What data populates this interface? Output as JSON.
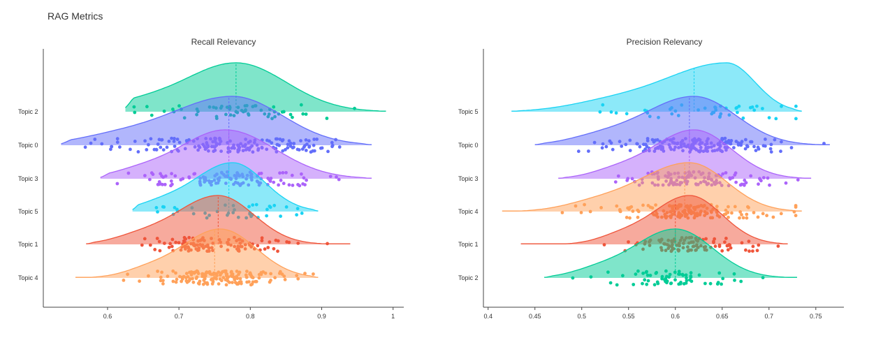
{
  "title": "RAG Metrics",
  "chart_data": [
    {
      "type": "ridgeline",
      "title": "Recall Relevancy",
      "xlabel": "",
      "xlim": [
        0.51,
        1.015
      ],
      "xticks": [
        0.6,
        0.7,
        0.8,
        0.9,
        1
      ],
      "xtick_labels": [
        "0.6",
        "0.7",
        "0.8",
        "0.9",
        "1"
      ],
      "series": [
        {
          "name": "Topic 2",
          "color": "#00cc96",
          "min": 0.625,
          "max": 0.99,
          "mean": 0.78,
          "mode": 0.78,
          "spread_left": 0.075,
          "spread_right": 0.07,
          "n": 60
        },
        {
          "name": "Topic 0",
          "color": "#636efa",
          "min": 0.535,
          "max": 0.97,
          "mean": 0.77,
          "mode": 0.775,
          "spread_left": 0.09,
          "spread_right": 0.07,
          "n": 170
        },
        {
          "name": "Topic 3",
          "color": "#ab63fa",
          "min": 0.59,
          "max": 0.97,
          "mean": 0.77,
          "mode": 0.765,
          "spread_left": 0.065,
          "spread_right": 0.07,
          "n": 120
        },
        {
          "name": "Topic 5",
          "color": "#19d3f3",
          "min": 0.635,
          "max": 0.895,
          "mean": 0.77,
          "mode": 0.775,
          "spread_left": 0.055,
          "spread_right": 0.045,
          "n": 40
        },
        {
          "name": "Topic 1",
          "color": "#ef553b",
          "min": 0.57,
          "max": 0.94,
          "mean": 0.755,
          "mode": 0.755,
          "spread_left": 0.06,
          "spread_right": 0.05,
          "n": 110
        },
        {
          "name": "Topic 4",
          "color": "#ffa15a",
          "min": 0.555,
          "max": 0.895,
          "mean": 0.75,
          "mode": 0.758,
          "spread_left": 0.055,
          "spread_right": 0.05,
          "n": 160
        }
      ]
    },
    {
      "type": "ridgeline",
      "title": "Precision Relevancy",
      "xlabel": "",
      "xlim": [
        0.395,
        0.78
      ],
      "xticks": [
        0.4,
        0.45,
        0.5,
        0.55,
        0.6,
        0.65,
        0.7,
        0.75
      ],
      "xtick_labels": [
        "0.4",
        "0.45",
        "0.5",
        "0.55",
        "0.6",
        "0.65",
        "0.7",
        "0.75"
      ],
      "series": [
        {
          "name": "Topic 5",
          "color": "#19d3f3",
          "min": 0.425,
          "max": 0.735,
          "mean": 0.62,
          "mode": 0.655,
          "spread_left": 0.07,
          "spread_right": 0.03,
          "n": 45
        },
        {
          "name": "Topic 0",
          "color": "#636efa",
          "min": 0.45,
          "max": 0.765,
          "mean": 0.615,
          "mode": 0.62,
          "spread_left": 0.055,
          "spread_right": 0.045,
          "n": 170
        },
        {
          "name": "Topic 3",
          "color": "#ab63fa",
          "min": 0.475,
          "max": 0.745,
          "mean": 0.615,
          "mode": 0.62,
          "spread_left": 0.045,
          "spread_right": 0.04,
          "n": 120
        },
        {
          "name": "Topic 4",
          "color": "#ffa15a",
          "min": 0.415,
          "max": 0.735,
          "mean": 0.61,
          "mode": 0.615,
          "spread_left": 0.055,
          "spread_right": 0.04,
          "n": 150
        },
        {
          "name": "Topic 1",
          "color": "#ef553b",
          "min": 0.435,
          "max": 0.72,
          "mean": 0.6,
          "mode": 0.615,
          "spread_left": 0.04,
          "spread_right": 0.035,
          "n": 100
        },
        {
          "name": "Topic 2",
          "color": "#00cc96",
          "min": 0.46,
          "max": 0.73,
          "mean": 0.6,
          "mode": 0.6,
          "spread_left": 0.045,
          "spread_right": 0.04,
          "n": 70
        }
      ]
    }
  ]
}
